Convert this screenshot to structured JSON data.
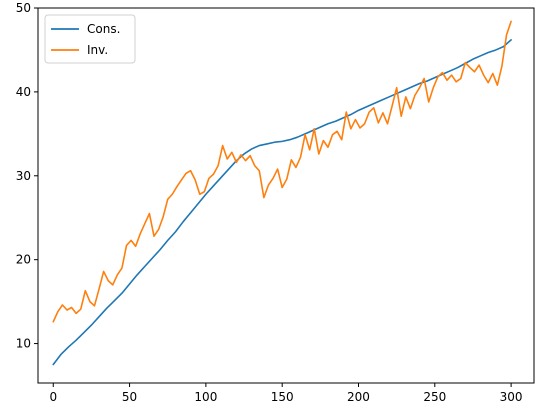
{
  "chart_data": {
    "type": "line",
    "title": "",
    "xlabel": "",
    "ylabel": "",
    "xlim": [
      -10,
      315
    ],
    "ylim": [
      5.3,
      50
    ],
    "xticks": [
      0,
      50,
      100,
      150,
      200,
      250,
      300
    ],
    "yticks": [
      10,
      20,
      30,
      40,
      50
    ],
    "grid": false,
    "legend_position": "top-left",
    "series": [
      {
        "name": "Cons.",
        "color": "#1f77b4",
        "x": [
          0,
          5,
          10,
          15,
          20,
          25,
          30,
          35,
          40,
          45,
          50,
          55,
          60,
          65,
          70,
          75,
          80,
          85,
          90,
          95,
          100,
          105,
          110,
          115,
          120,
          125,
          130,
          135,
          140,
          145,
          150,
          155,
          160,
          165,
          170,
          175,
          180,
          185,
          190,
          195,
          200,
          205,
          210,
          215,
          220,
          225,
          230,
          235,
          240,
          245,
          250,
          255,
          260,
          265,
          270,
          275,
          280,
          285,
          290,
          295,
          300
        ],
        "y": [
          7.5,
          8.7,
          9.6,
          10.4,
          11.3,
          12.2,
          13.2,
          14.2,
          15.1,
          16.0,
          17.1,
          18.2,
          19.2,
          20.2,
          21.2,
          22.3,
          23.3,
          24.5,
          25.6,
          26.7,
          27.8,
          28.8,
          29.8,
          30.8,
          31.8,
          32.6,
          33.2,
          33.6,
          33.8,
          34.0,
          34.1,
          34.3,
          34.6,
          35.0,
          35.4,
          35.8,
          36.2,
          36.5,
          36.9,
          37.3,
          37.8,
          38.2,
          38.6,
          39.0,
          39.4,
          39.8,
          40.2,
          40.6,
          41.0,
          41.3,
          41.7,
          42.1,
          42.5,
          42.9,
          43.4,
          43.9,
          44.3,
          44.7,
          45.0,
          45.4,
          46.2
        ]
      },
      {
        "name": "Inv.",
        "color": "#ff7f0e",
        "x": [
          0,
          3,
          6,
          9,
          12,
          15,
          18,
          21,
          24,
          27,
          30,
          33,
          36,
          39,
          42,
          45,
          48,
          51,
          54,
          57,
          60,
          63,
          66,
          69,
          72,
          75,
          78,
          81,
          84,
          87,
          90,
          93,
          96,
          99,
          102,
          105,
          108,
          111,
          114,
          117,
          120,
          123,
          126,
          129,
          132,
          135,
          138,
          141,
          144,
          147,
          150,
          153,
          156,
          159,
          162,
          165,
          168,
          171,
          174,
          177,
          180,
          183,
          186,
          189,
          192,
          195,
          198,
          201,
          204,
          207,
          210,
          213,
          216,
          219,
          222,
          225,
          228,
          231,
          234,
          237,
          240,
          243,
          246,
          249,
          252,
          255,
          258,
          261,
          264,
          267,
          270,
          273,
          276,
          279,
          282,
          285,
          288,
          291,
          294,
          297,
          300
        ],
        "y": [
          12.6,
          13.8,
          14.6,
          14.0,
          14.3,
          13.6,
          14.1,
          16.3,
          15.0,
          14.5,
          16.5,
          18.6,
          17.5,
          17.0,
          18.2,
          19.0,
          21.7,
          22.3,
          21.6,
          23.1,
          24.3,
          25.5,
          22.8,
          23.6,
          25.1,
          27.2,
          27.8,
          28.7,
          29.5,
          30.3,
          30.6,
          29.5,
          27.8,
          28.1,
          29.7,
          30.2,
          31.2,
          33.6,
          32.0,
          32.8,
          31.6,
          32.5,
          31.8,
          32.4,
          31.2,
          30.6,
          27.4,
          28.9,
          29.7,
          30.8,
          28.6,
          29.6,
          31.9,
          31.0,
          32.2,
          34.9,
          33.1,
          35.6,
          32.6,
          34.2,
          33.4,
          34.9,
          35.3,
          34.3,
          37.6,
          35.6,
          36.7,
          35.7,
          36.2,
          37.6,
          38.1,
          36.3,
          37.5,
          36.2,
          38.3,
          40.5,
          37.1,
          39.4,
          38.0,
          39.6,
          40.5,
          41.6,
          38.8,
          40.5,
          41.8,
          42.3,
          41.4,
          42.0,
          41.2,
          41.6,
          43.5,
          42.9,
          42.4,
          43.2,
          42.0,
          41.1,
          42.2,
          40.8,
          43.1,
          46.8,
          48.4
        ]
      }
    ]
  }
}
